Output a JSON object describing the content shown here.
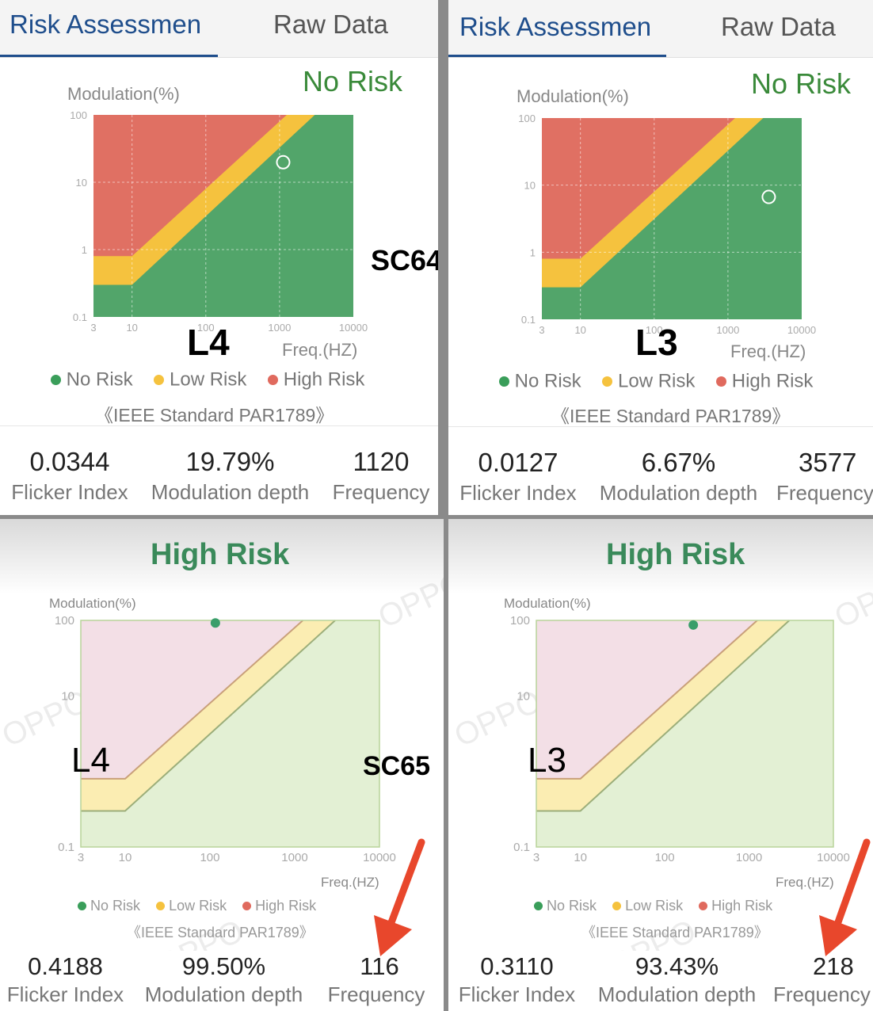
{
  "panels": [
    {
      "tabs": [
        {
          "label": "Risk Assessmen",
          "active": true
        },
        {
          "label": "Raw Data",
          "active": false
        }
      ],
      "status": "No Risk",
      "status_color": "#3a8a3a",
      "chart_data": {
        "type": "scatter",
        "ylabel": "Modulation(%)",
        "xlabel": "Freq.(HZ)",
        "x_ticks": [
          "3",
          "10",
          "100",
          "1000",
          "10000"
        ],
        "y_ticks": [
          "100",
          "10",
          "1",
          "0.1"
        ],
        "x_scale": "log",
        "y_scale": "log",
        "xlim": [
          3,
          10000
        ],
        "ylim": [
          0.1,
          100
        ],
        "regions": [
          "No Risk",
          "Low Risk",
          "High Risk"
        ],
        "point": {
          "x": 1120,
          "y": 19.79
        },
        "legend": [
          "No Risk",
          "Low Risk",
          "High Risk"
        ],
        "legend_colors": [
          "#3a9e5a",
          "#f5c23e",
          "#e06a5e"
        ],
        "standard": "《IEEE Standard PAR1789》"
      },
      "stats": [
        {
          "value": "0.0344",
          "label": "Flicker Index"
        },
        {
          "value": "19.79%",
          "label": "Modulation depth"
        },
        {
          "value": "1120",
          "label": "Frequency"
        }
      ],
      "overlay": "L4"
    },
    {
      "tabs": [
        {
          "label": "Risk Assessmen",
          "active": true
        },
        {
          "label": "Raw Data",
          "active": false
        }
      ],
      "status": "No Risk",
      "status_color": "#3a8a3a",
      "chart_data": {
        "type": "scatter",
        "ylabel": "Modulation(%)",
        "xlabel": "Freq.(HZ)",
        "x_ticks": [
          "3",
          "10",
          "100",
          "1000",
          "10000"
        ],
        "y_ticks": [
          "100",
          "10",
          "1",
          "0.1"
        ],
        "x_scale": "log",
        "y_scale": "log",
        "xlim": [
          3,
          10000
        ],
        "ylim": [
          0.1,
          100
        ],
        "regions": [
          "No Risk",
          "Low Risk",
          "High Risk"
        ],
        "point": {
          "x": 3577,
          "y": 6.67
        },
        "legend": [
          "No Risk",
          "Low Risk",
          "High Risk"
        ],
        "legend_colors": [
          "#3a9e5a",
          "#f5c23e",
          "#e06a5e"
        ],
        "standard": "《IEEE Standard PAR1789》"
      },
      "stats": [
        {
          "value": "0.0127",
          "label": "Flicker Index"
        },
        {
          "value": "6.67%",
          "label": "Modulation depth"
        },
        {
          "value": "3577",
          "label": "Frequency"
        }
      ],
      "overlay": "L3"
    },
    {
      "status": "High Risk",
      "status_color": "#3a8a5a",
      "chart_data": {
        "type": "scatter",
        "ylabel": "Modulation(%)",
        "xlabel": "Freq.(HZ)",
        "x_ticks": [
          "3",
          "10",
          "100",
          "1000",
          "10000"
        ],
        "y_ticks": [
          "100",
          "10",
          "0.1"
        ],
        "x_scale": "log",
        "y_scale": "log",
        "xlim": [
          3,
          10000
        ],
        "ylim": [
          0.1,
          100
        ],
        "regions": [
          "No Risk",
          "Low Risk",
          "High Risk"
        ],
        "point": {
          "x": 116,
          "y": 99.5
        },
        "legend": [
          "No Risk",
          "Low Risk",
          "High Risk"
        ],
        "legend_colors": [
          "#3a9e5a",
          "#f5c23e",
          "#e06a5e"
        ],
        "standard": "《IEEE Standard PAR1789》"
      },
      "stats": [
        {
          "value": "0.4188",
          "label": "Flicker Index"
        },
        {
          "value": "99.50%",
          "label": "Modulation depth"
        },
        {
          "value": "116",
          "label": "Frequency"
        }
      ],
      "overlay": "L4",
      "watermark": "OPPO"
    },
    {
      "status": "High Risk",
      "status_color": "#3a8a5a",
      "chart_data": {
        "type": "scatter",
        "ylabel": "Modulation(%)",
        "xlabel": "Freq.(HZ)",
        "x_ticks": [
          "3",
          "10",
          "100",
          "1000",
          "10000"
        ],
        "y_ticks": [
          "100",
          "10",
          "0.1"
        ],
        "x_scale": "log",
        "y_scale": "log",
        "xlim": [
          3,
          10000
        ],
        "ylim": [
          0.1,
          100
        ],
        "regions": [
          "No Risk",
          "Low Risk",
          "High Risk"
        ],
        "point": {
          "x": 218,
          "y": 93.43
        },
        "legend": [
          "No Risk",
          "Low Risk",
          "High Risk"
        ],
        "legend_colors": [
          "#3a9e5a",
          "#f5c23e",
          "#e06a5e"
        ],
        "standard": "《IEEE Standard PAR1789》"
      },
      "stats": [
        {
          "value": "0.3110",
          "label": "Flicker Index"
        },
        {
          "value": "93.43%",
          "label": "Modulation depth"
        },
        {
          "value": "218",
          "label": "Frequency"
        }
      ],
      "overlay": "L3",
      "watermark": "OPPO"
    }
  ],
  "annotations": {
    "top_label": "SC64",
    "bottom_label": "SC65"
  },
  "colors": {
    "top_no_risk": "#52a56a",
    "top_low_risk": "#f5c23e",
    "top_high_risk": "#e07063",
    "bottom_no_risk": "#e3f0d4",
    "bottom_low_risk": "#fbedb2",
    "bottom_high_risk": "#f3dfe6",
    "arrow": "#e8472c"
  }
}
